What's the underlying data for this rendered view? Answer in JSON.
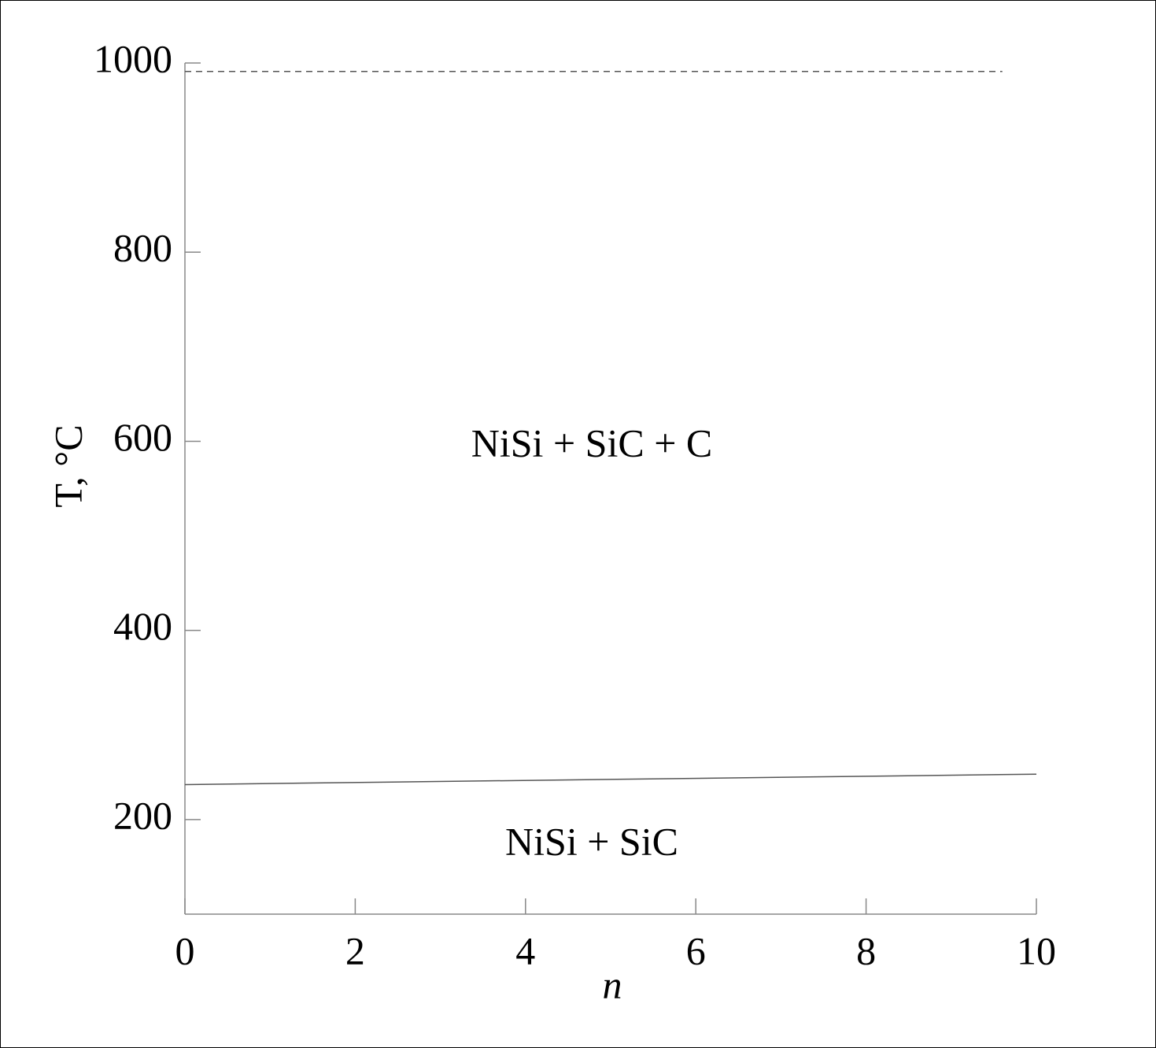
{
  "chart_data": {
    "type": "line",
    "xlabel": "n",
    "ylabel": "T, °C",
    "annotations": [
      "NiSi + SiC + C",
      "NiSi + SiC"
    ],
    "series": [
      {
        "x": [
          0,
          10
        ],
        "values": [
          237,
          248
        ],
        "color": "#555555",
        "dashed": false
      },
      {
        "x": [
          0,
          9.6
        ],
        "values": [
          991,
          991
        ],
        "color": "#555555",
        "dashed": true
      }
    ],
    "xlim": [
      0,
      10
    ],
    "xticks": [
      0,
      2,
      4,
      6,
      8,
      10
    ],
    "ylim": [
      100,
      1000
    ],
    "yticks": [
      200,
      400,
      600,
      800,
      1000
    ],
    "grid": false
  }
}
